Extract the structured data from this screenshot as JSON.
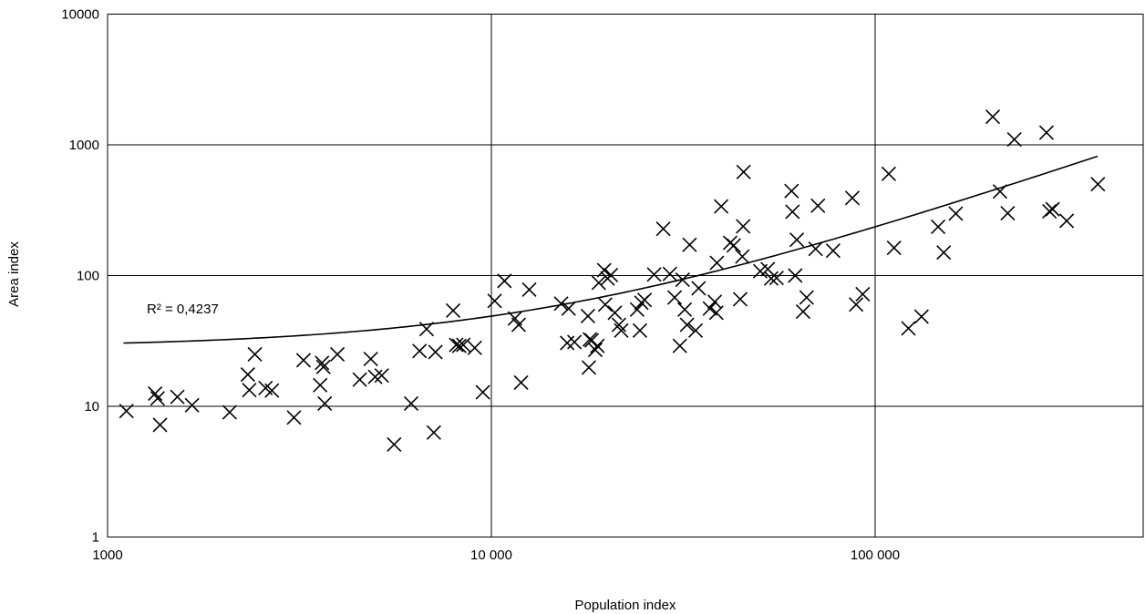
{
  "chart_data": {
    "type": "scatter",
    "title": "",
    "xlabel": "Population index",
    "ylabel": "Area index",
    "xscale": "log",
    "yscale": "log",
    "xlim": [
      1000,
      400000
    ],
    "ylim": [
      1,
      10000
    ],
    "grid": true,
    "x_ticks": [
      {
        "value": 1000,
        "label": "1000"
      },
      {
        "value": 10000,
        "label": "10 000"
      },
      {
        "value": 100000,
        "label": "100 000"
      }
    ],
    "y_ticks": [
      {
        "value": 1,
        "label": "1"
      },
      {
        "value": 10,
        "label": "10"
      },
      {
        "value": 100,
        "label": "100"
      },
      {
        "value": 1000,
        "label": "1000"
      },
      {
        "value": 10000,
        "label": "10000"
      }
    ],
    "marker": "x",
    "annotation": "R² = 0,4237",
    "trendline": {
      "type": "linear",
      "points": [
        [
          1100,
          32
        ],
        [
          10000,
          52
        ],
        [
          100000,
          230
        ],
        [
          380000,
          820
        ]
      ]
    },
    "series": [
      {
        "points": [
          [
            1120,
            9.2
          ],
          [
            1330,
            12.5
          ],
          [
            1350,
            11.5
          ],
          [
            1370,
            7.2
          ],
          [
            1520,
            11.8
          ],
          [
            1660,
            10.2
          ],
          [
            2080,
            9.0
          ],
          [
            2320,
            17.5
          ],
          [
            2340,
            13.3
          ],
          [
            2420,
            25.0
          ],
          [
            2580,
            13.8
          ],
          [
            2680,
            13.2
          ],
          [
            3060,
            8.2
          ],
          [
            3240,
            22.5
          ],
          [
            3580,
            14.5
          ],
          [
            3620,
            21.5
          ],
          [
            3650,
            20.0
          ],
          [
            3680,
            10.5
          ],
          [
            3970,
            25.0
          ],
          [
            4540,
            16.0
          ],
          [
            4850,
            23.0
          ],
          [
            4980,
            16.8
          ],
          [
            5180,
            17.2
          ],
          [
            5580,
            5.1
          ],
          [
            6180,
            10.5
          ],
          [
            6500,
            26.5
          ],
          [
            6780,
            39.0
          ],
          [
            7080,
            6.3
          ],
          [
            7150,
            26.0
          ],
          [
            7950,
            54.0
          ],
          [
            8100,
            29.5
          ],
          [
            8250,
            29.0
          ],
          [
            8450,
            29.5
          ],
          [
            9050,
            28.0
          ],
          [
            9500,
            12.8
          ],
          [
            10200,
            64.0
          ],
          [
            10820,
            91.0
          ],
          [
            11520,
            47.0
          ],
          [
            11780,
            42.0
          ],
          [
            11950,
            15.2
          ],
          [
            12550,
            78.0
          ],
          [
            15200,
            61.0
          ],
          [
            15760,
            30.5
          ],
          [
            15900,
            56.0
          ],
          [
            16460,
            31.0
          ],
          [
            17850,
            49.0
          ],
          [
            17950,
            19.8
          ],
          [
            18050,
            32.5
          ],
          [
            18250,
            32.0
          ],
          [
            18650,
            27.0
          ],
          [
            18900,
            29.0
          ],
          [
            19050,
            88.0
          ],
          [
            19680,
            110.0
          ],
          [
            19800,
            60.0
          ],
          [
            20080,
            95.0
          ],
          [
            20480,
            101.0
          ],
          [
            20980,
            52.0
          ],
          [
            21500,
            42.0
          ],
          [
            21800,
            38.0
          ],
          [
            23980,
            55.0
          ],
          [
            24380,
            38.0
          ],
          [
            24600,
            62.0
          ],
          [
            25080,
            65.0
          ],
          [
            26550,
            102.0
          ],
          [
            28050,
            228.0
          ],
          [
            29180,
            103.0
          ],
          [
            30020,
            68.0
          ],
          [
            30980,
            29.0
          ],
          [
            31500,
            93.0
          ],
          [
            31900,
            55.0
          ],
          [
            32350,
            42.0
          ],
          [
            32850,
            172.0
          ],
          [
            34050,
            38.0
          ],
          [
            34680,
            80.0
          ],
          [
            37100,
            56.0
          ],
          [
            38200,
            63.0
          ],
          [
            38560,
            52.0
          ],
          [
            38700,
            125.0
          ],
          [
            39700,
            338.0
          ],
          [
            41900,
            178.0
          ],
          [
            42800,
            170.0
          ],
          [
            44500,
            66.0
          ],
          [
            45080,
            140.0
          ],
          [
            45300,
            238.0
          ],
          [
            45420,
            620.0
          ],
          [
            50200,
            108.0
          ],
          [
            52500,
            112.0
          ],
          [
            53600,
            95.0
          ],
          [
            55350,
            96.0
          ],
          [
            60550,
            443.0
          ],
          [
            60900,
            308.0
          ],
          [
            61900,
            100.0
          ],
          [
            62500,
            188.0
          ],
          [
            64900,
            53.0
          ],
          [
            66280,
            68.0
          ],
          [
            69950,
            160.0
          ],
          [
            70950,
            342.0
          ],
          [
            77700,
            155.0
          ],
          [
            87200,
            392.0
          ],
          [
            89200,
            60.0
          ],
          [
            92800,
            72.0
          ],
          [
            108500,
            600.0
          ],
          [
            112000,
            163.0
          ],
          [
            122100,
            39.5
          ],
          [
            132050,
            48.5
          ],
          [
            145900,
            236.0
          ],
          [
            150900,
            150.0
          ],
          [
            162200,
            298.0
          ],
          [
            202500,
            1640.0
          ],
          [
            211500,
            440.0
          ],
          [
            221500,
            300.0
          ],
          [
            230500,
            1100.0
          ],
          [
            279500,
            1240.0
          ],
          [
            284500,
            310.0
          ],
          [
            290000,
            322.0
          ],
          [
            315500,
            262.0
          ],
          [
            380500,
            500.0
          ]
        ]
      }
    ]
  }
}
